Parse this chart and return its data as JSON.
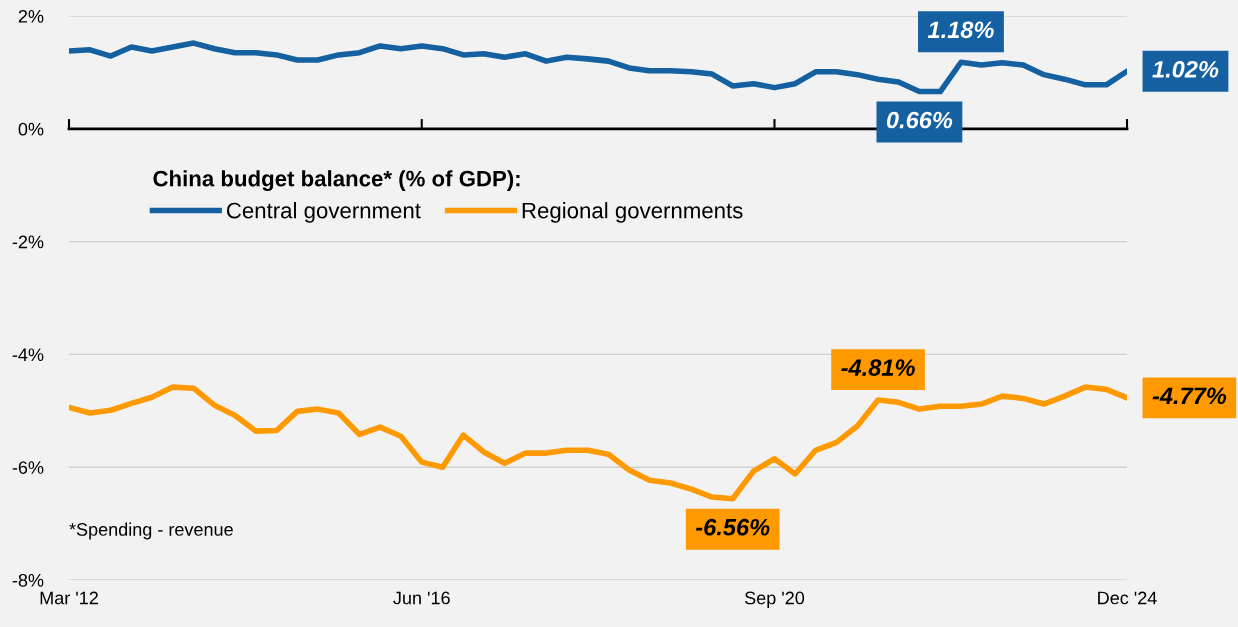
{
  "chart_data": {
    "type": "line",
    "legend_title": "China budget balance* (% of GDP):",
    "x": [
      "2012-03",
      "2012-06",
      "2012-09",
      "2012-12",
      "2013-03",
      "2013-06",
      "2013-09",
      "2013-12",
      "2014-03",
      "2014-06",
      "2014-09",
      "2014-12",
      "2015-03",
      "2015-06",
      "2015-09",
      "2015-12",
      "2016-03",
      "2016-06",
      "2016-09",
      "2016-12",
      "2017-03",
      "2017-06",
      "2017-09",
      "2017-12",
      "2018-03",
      "2018-06",
      "2018-09",
      "2018-12",
      "2019-03",
      "2019-06",
      "2019-09",
      "2019-12",
      "2020-03",
      "2020-06",
      "2020-09",
      "2020-12",
      "2021-03",
      "2021-06",
      "2021-09",
      "2021-12",
      "2022-03",
      "2022-06",
      "2022-09",
      "2022-12",
      "2023-03",
      "2023-06",
      "2023-09",
      "2023-12",
      "2024-03",
      "2024-06",
      "2024-09",
      "2024-12"
    ],
    "series": [
      {
        "name": "Central government",
        "color": "#1460a0",
        "values": [
          1.38,
          1.4,
          1.29,
          1.45,
          1.38,
          1.45,
          1.52,
          1.42,
          1.35,
          1.35,
          1.31,
          1.22,
          1.22,
          1.31,
          1.35,
          1.47,
          1.42,
          1.47,
          1.42,
          1.31,
          1.33,
          1.27,
          1.33,
          1.2,
          1.27,
          1.24,
          1.2,
          1.08,
          1.03,
          1.03,
          1.01,
          0.97,
          0.76,
          0.8,
          0.73,
          0.8,
          1.01,
          1.01,
          0.96,
          0.88,
          0.83,
          0.66,
          0.66,
          1.18,
          1.13,
          1.17,
          1.13,
          0.96,
          0.88,
          0.78,
          0.78,
          1.02
        ]
      },
      {
        "name": "Regional governments",
        "color": "#ff9900",
        "values": [
          -4.94,
          -5.04,
          -4.99,
          -4.87,
          -4.76,
          -4.58,
          -4.6,
          -4.9,
          -5.08,
          -5.36,
          -5.35,
          -5.01,
          -4.97,
          -5.04,
          -5.42,
          -5.29,
          -5.45,
          -5.91,
          -6.0,
          -5.43,
          -5.73,
          -5.93,
          -5.75,
          -5.75,
          -5.7,
          -5.7,
          -5.77,
          -6.05,
          -6.23,
          -6.28,
          -6.39,
          -6.53,
          -6.56,
          -6.07,
          -5.85,
          -6.12,
          -5.7,
          -5.56,
          -5.27,
          -4.81,
          -4.85,
          -4.97,
          -4.92,
          -4.92,
          -4.88,
          -4.74,
          -4.78,
          -4.88,
          -4.74,
          -4.58,
          -4.62,
          -4.77
        ]
      }
    ],
    "annotations": [
      {
        "text": "1.18%",
        "x": "2022-12",
        "y": 1.18
      },
      {
        "text": "0.66%",
        "x": "2022-06",
        "y": 0.66
      },
      {
        "text": "1.02%",
        "x": "2024-12",
        "y": 1.02
      },
      {
        "text": "-4.81%",
        "x": "2021-12",
        "y": -4.81
      },
      {
        "text": "-6.56%",
        "x": "2020-03",
        "y": -6.56
      },
      {
        "text": "-4.77%",
        "x": "2024-12",
        "y": -4.77
      },
      "*Spending - revenue"
    ],
    "xlim": [
      "2012-03",
      "2024-12"
    ],
    "xticks": [
      {
        "value": "2012-03",
        "label": "Mar '12"
      },
      {
        "value": "2016-06",
        "label": "Jun '16"
      },
      {
        "value": "2020-09",
        "label": "Sep '20"
      },
      {
        "value": "2024-12",
        "label": "Dec '24"
      }
    ],
    "ylim": [
      -8,
      2
    ],
    "yticks": [
      {
        "value": 2,
        "label": "2%"
      },
      {
        "value": 0,
        "label": "0%"
      },
      {
        "value": -2,
        "label": "-2%"
      },
      {
        "value": -4,
        "label": "-4%"
      },
      {
        "value": -6,
        "label": "-6%"
      },
      {
        "value": -8,
        "label": "-8%"
      }
    ],
    "grid": "y",
    "legend": "center left",
    "line_style": "solid",
    "marker": "none"
  }
}
